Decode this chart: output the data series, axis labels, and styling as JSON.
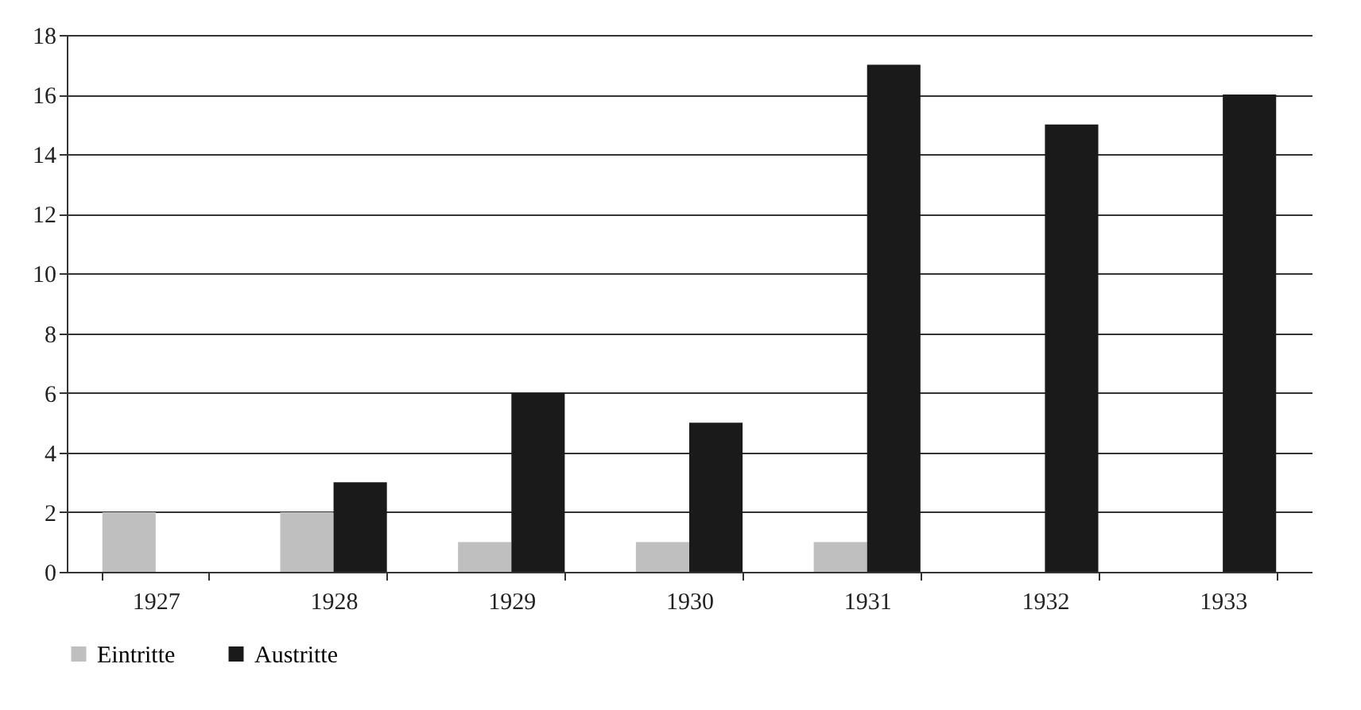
{
  "chart_data": {
    "type": "bar",
    "categories": [
      "1927",
      "1928",
      "1929",
      "1930",
      "1931",
      "1932",
      "1933"
    ],
    "series": [
      {
        "name": "Eintritte",
        "color": "#bfbfbf",
        "values": [
          2,
          2,
          1,
          1,
          1,
          0,
          0
        ]
      },
      {
        "name": "Austritte",
        "color": "#1a1a1a",
        "values": [
          0,
          3,
          6,
          5,
          17,
          15,
          16
        ]
      }
    ],
    "ylim": [
      0,
      18
    ],
    "yticks": [
      0,
      2,
      4,
      6,
      8,
      10,
      12,
      14,
      16,
      18
    ],
    "grid": "y",
    "legend": "bottom"
  }
}
